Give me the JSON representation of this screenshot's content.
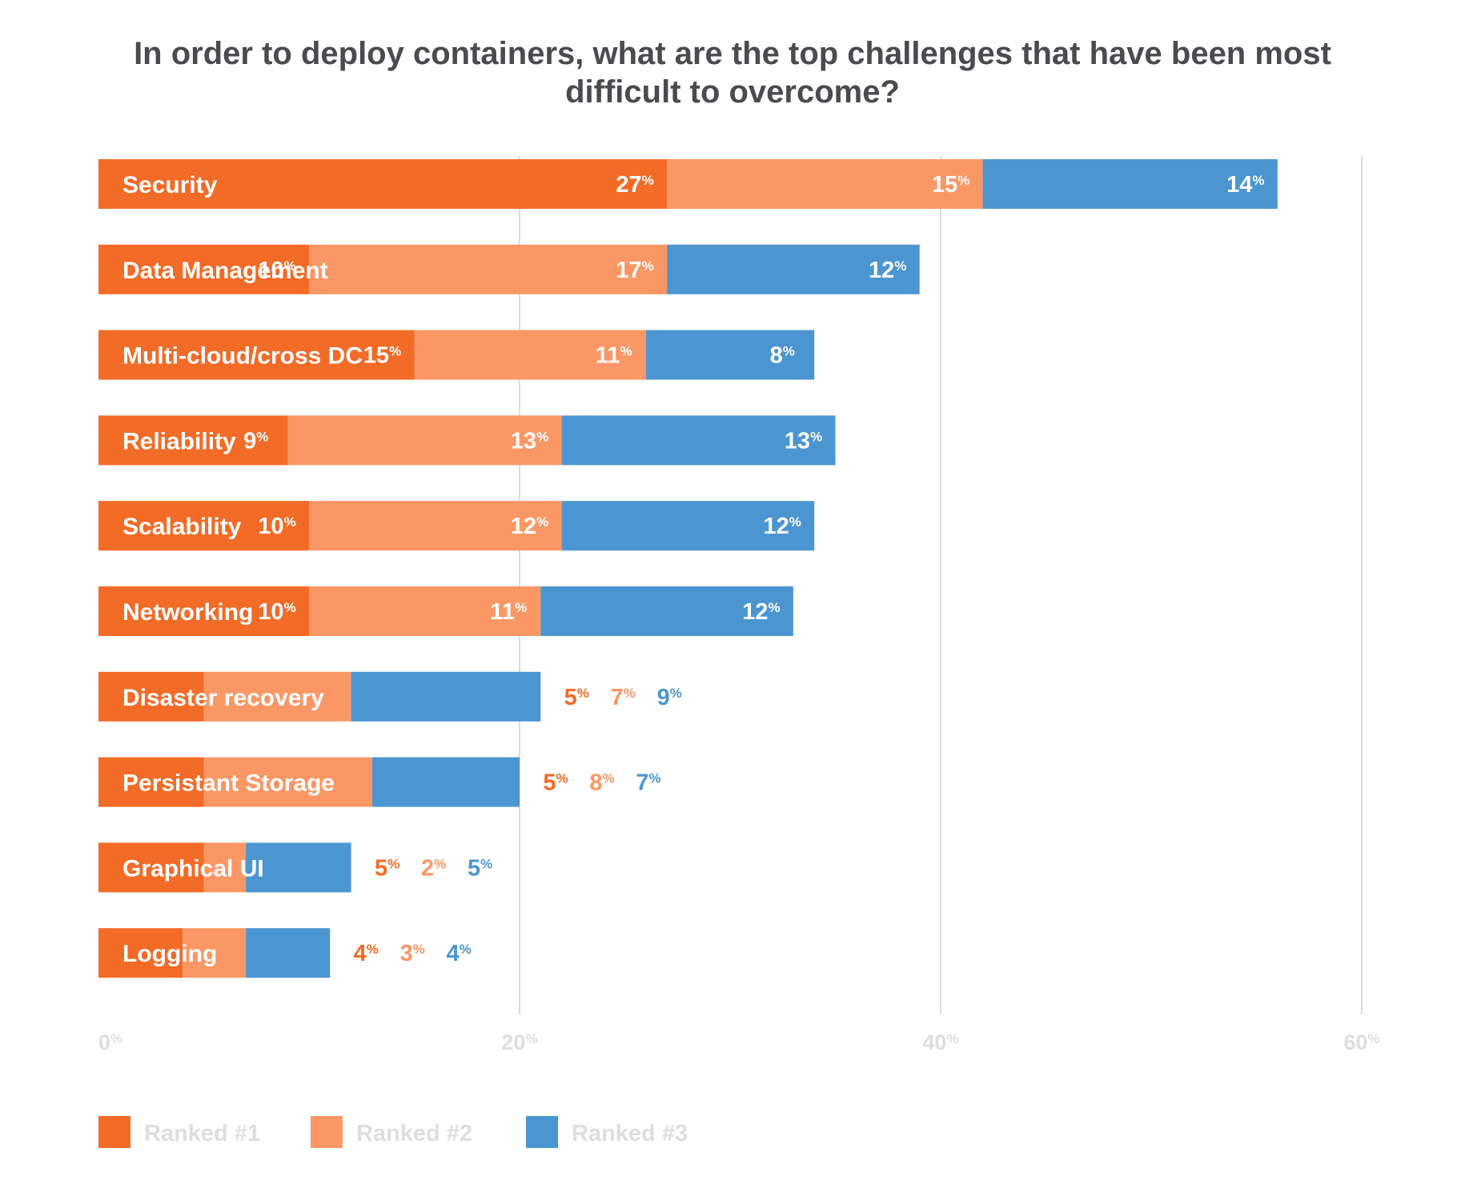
{
  "chart_data": {
    "type": "bar",
    "orientation": "horizontal",
    "stacked": true,
    "title": "In order to deploy containers, what are the top challenges that have been most difficult to overcome?",
    "title_lines": [
      "In order to deploy containers, what are the top challenges that have been most",
      "difficult to overcome?"
    ],
    "categories": [
      "Security",
      "Data Management",
      "Multi-cloud/cross DC",
      "Reliability",
      "Scalability",
      "Networking",
      "Disaster recovery",
      "Persistant Storage",
      "Graphical UI",
      "Logging"
    ],
    "series": [
      {
        "name": "Ranked #1",
        "color": "#f26b27",
        "values": [
          27,
          10,
          15,
          9,
          10,
          10,
          5,
          5,
          5,
          4
        ]
      },
      {
        "name": "Ranked #2",
        "color": "#fb9764",
        "values": [
          15,
          17,
          11,
          13,
          12,
          11,
          7,
          8,
          2,
          3
        ]
      },
      {
        "name": "Ranked #3",
        "color": "#4b96d1",
        "values": [
          14,
          12,
          8,
          13,
          12,
          12,
          9,
          7,
          5,
          4
        ]
      }
    ],
    "value_suffix": "%",
    "xlim": [
      0,
      60
    ],
    "xticks": [
      0,
      20,
      40,
      60
    ],
    "tick_suffix": "%",
    "grid": true,
    "legend_position": "bottom-left"
  }
}
